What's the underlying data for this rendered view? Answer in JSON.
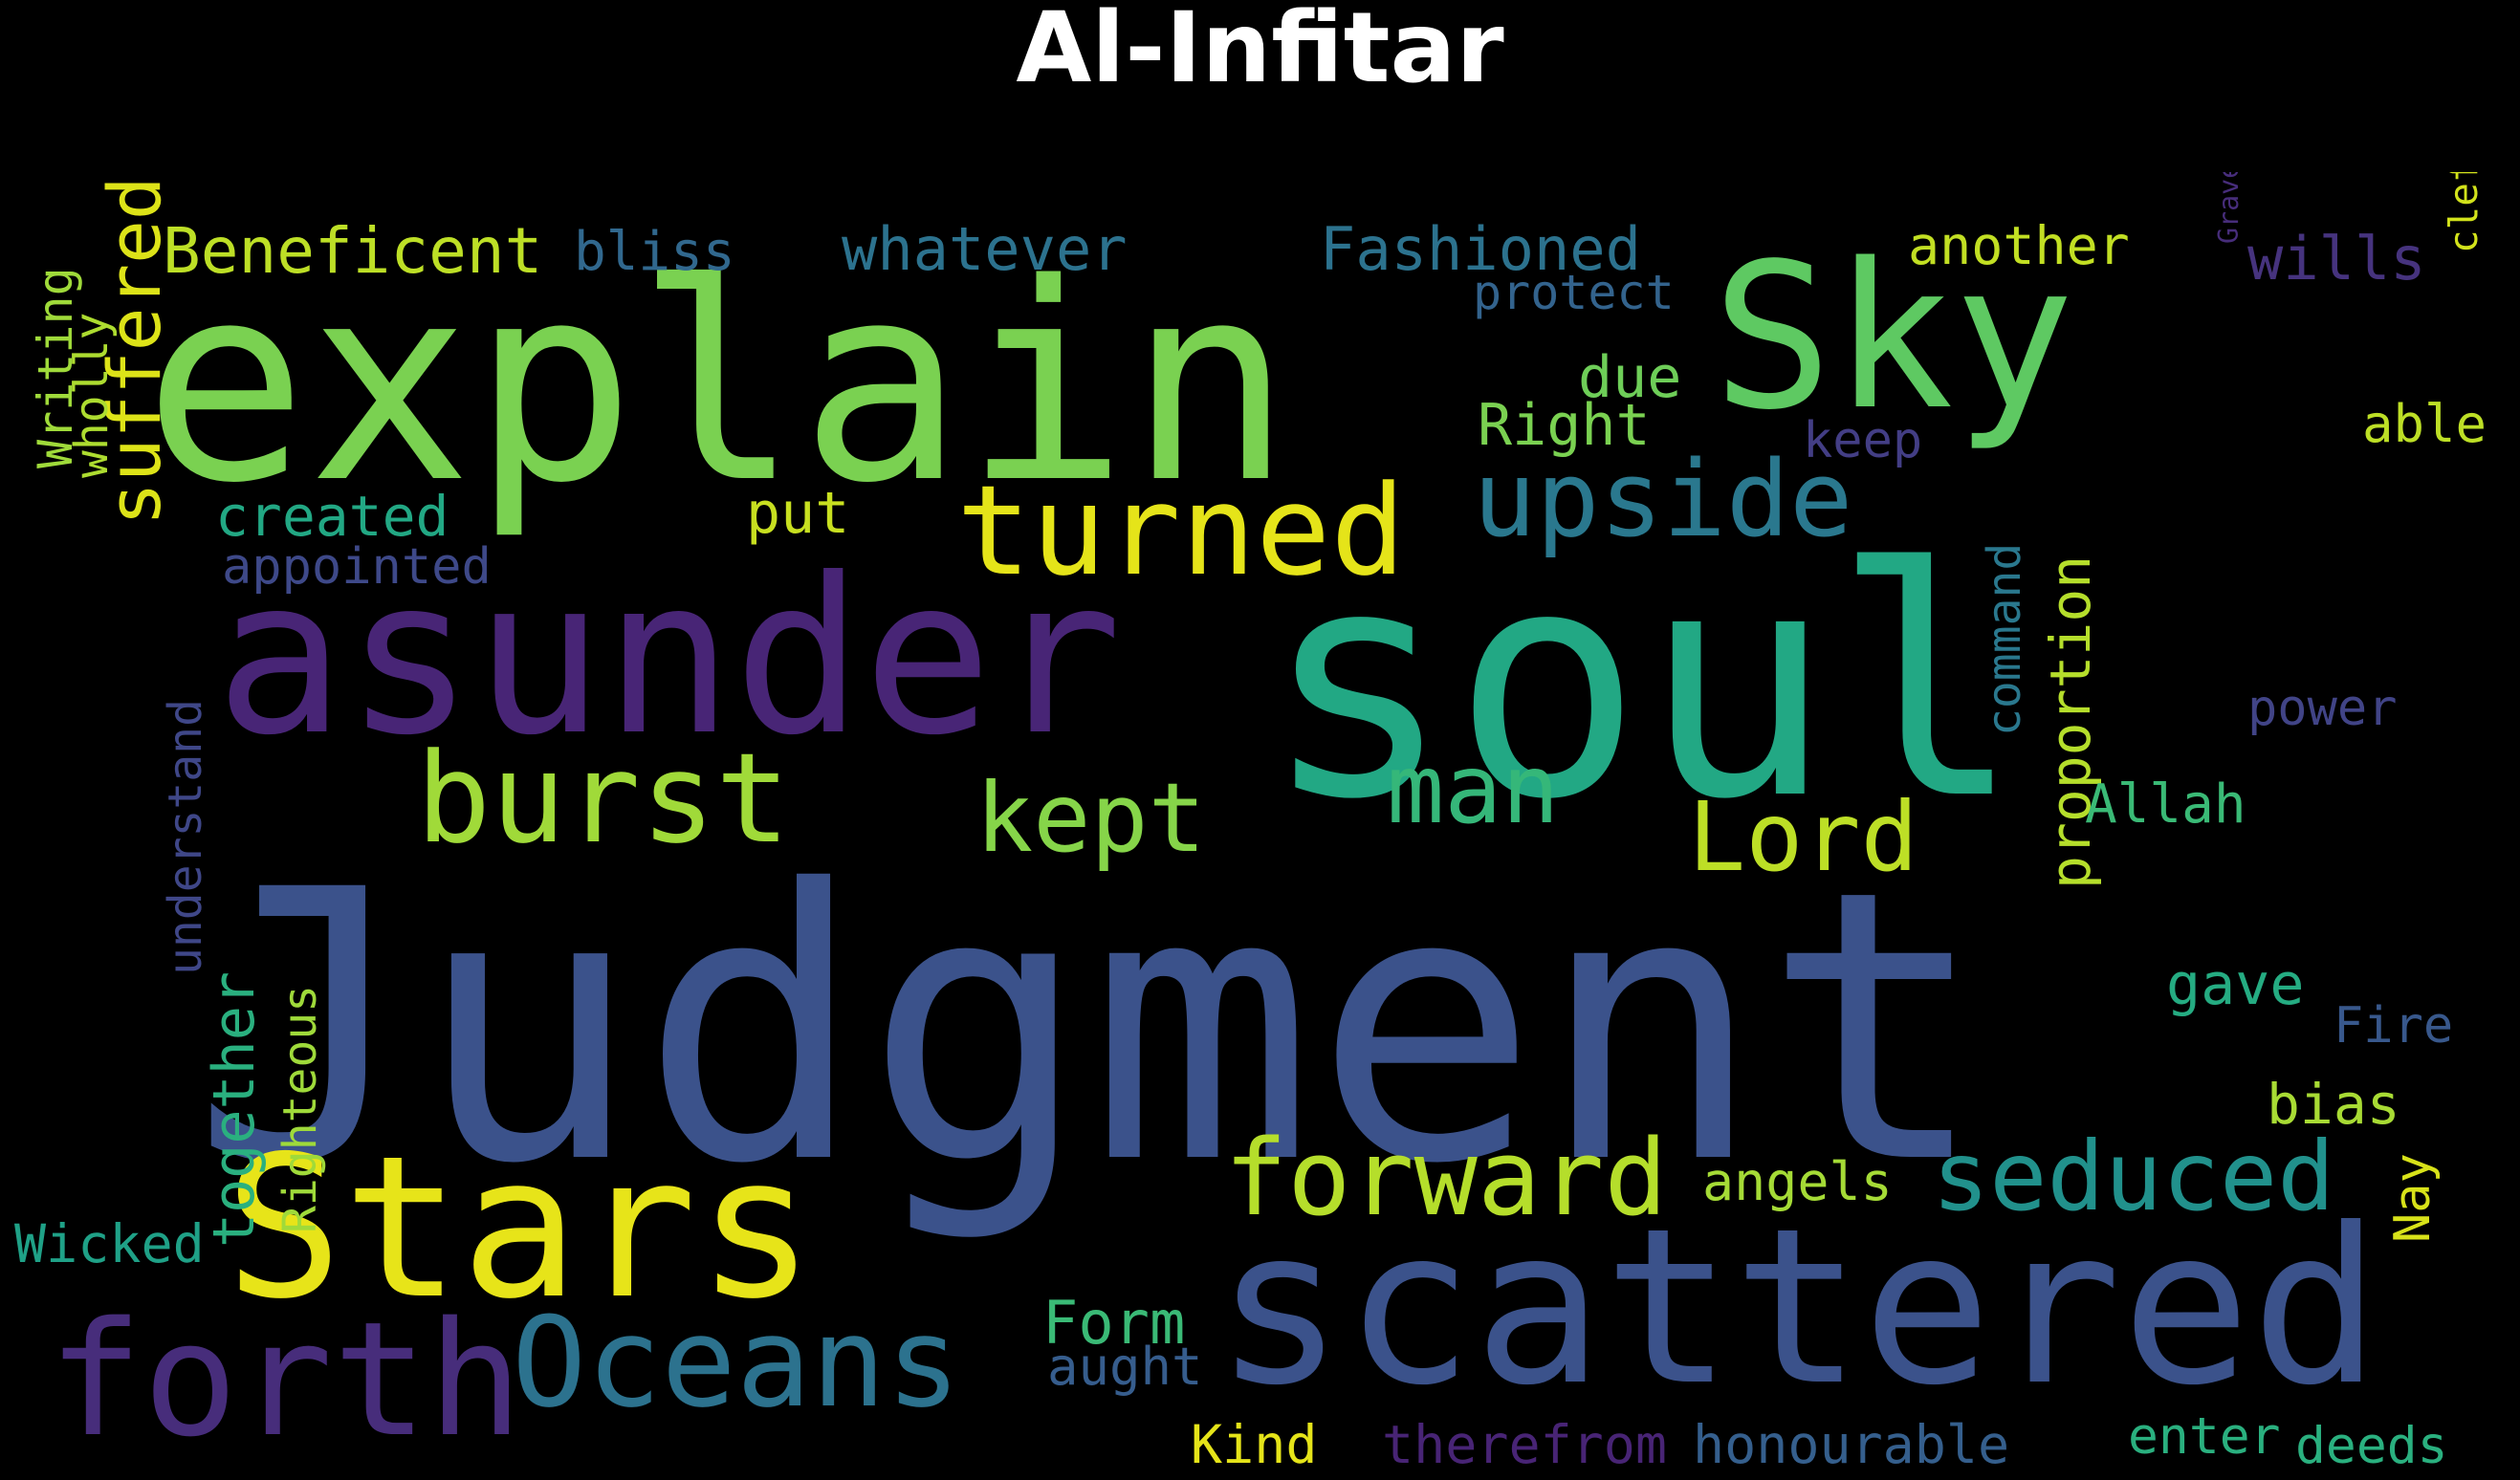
{
  "title": "Al-Infitar",
  "colors": {
    "background": "#000000",
    "title": "#ffffff"
  },
  "words": [
    {
      "text": "Judgment",
      "color": "#3b528b"
    },
    {
      "text": "explain",
      "color": "#7ad151"
    },
    {
      "text": "soul",
      "color": "#22a884"
    },
    {
      "text": "asunder",
      "color": "#482576"
    },
    {
      "text": "scattered",
      "color": "#3b528b"
    },
    {
      "text": "Sky",
      "color": "#5ec962"
    },
    {
      "text": "cleft",
      "color": "#d2e21b"
    },
    {
      "text": "Stars",
      "color": "#e7e419"
    },
    {
      "text": "suffered",
      "color": "#dde318"
    },
    {
      "text": "Graves",
      "color": "#472d7b"
    },
    {
      "text": "forth",
      "color": "#472d7b"
    },
    {
      "text": "Oceans",
      "color": "#2c728e"
    },
    {
      "text": "turned",
      "color": "#e5e419"
    },
    {
      "text": "burst",
      "color": "#a0da39"
    },
    {
      "text": "upside",
      "color": "#2a788e"
    },
    {
      "text": "forward",
      "color": "#b5de2b"
    },
    {
      "text": "seduced",
      "color": "#21918c"
    },
    {
      "text": "kept",
      "color": "#86d549"
    },
    {
      "text": "man",
      "color": "#35b779"
    },
    {
      "text": "Lord",
      "color": "#bddf26"
    },
    {
      "text": "Beneficent",
      "color": "#bddf26"
    },
    {
      "text": "bliss",
      "color": "#31688e"
    },
    {
      "text": "whatever",
      "color": "#2c728e"
    },
    {
      "text": "Fashioned",
      "color": "#2c728e"
    },
    {
      "text": "another",
      "color": "#c2df23"
    },
    {
      "text": "wills",
      "color": "#46337e"
    },
    {
      "text": "protect",
      "color": "#33638d"
    },
    {
      "text": "due",
      "color": "#6ece58"
    },
    {
      "text": "Right",
      "color": "#7ad151"
    },
    {
      "text": "keep",
      "color": "#433e85"
    },
    {
      "text": "able",
      "color": "#bddf26"
    },
    {
      "text": "Writing",
      "color": "#9fda3a"
    },
    {
      "text": "wholly",
      "color": "#addc30"
    },
    {
      "text": "created",
      "color": "#22a884"
    },
    {
      "text": "appointed",
      "color": "#3e4989"
    },
    {
      "text": "put",
      "color": "#c8e020"
    },
    {
      "text": "understand",
      "color": "#3f4788"
    },
    {
      "text": "together",
      "color": "#2ab07f"
    },
    {
      "text": "Righteous",
      "color": "#9fda3a"
    },
    {
      "text": "command",
      "color": "#2a788e"
    },
    {
      "text": "proportion",
      "color": "#b5de2b"
    },
    {
      "text": "power",
      "color": "#414487"
    },
    {
      "text": "Allah",
      "color": "#3aba76"
    },
    {
      "text": "gave",
      "color": "#25ac82"
    },
    {
      "text": "Fire",
      "color": "#38588c"
    },
    {
      "text": "bias",
      "color": "#a8db34"
    },
    {
      "text": "Nay",
      "color": "#d8e219"
    },
    {
      "text": "angels",
      "color": "#a5db36"
    },
    {
      "text": "Wicked",
      "color": "#1fa187"
    },
    {
      "text": "Form",
      "color": "#3aba76"
    },
    {
      "text": "aught",
      "color": "#365d8d"
    },
    {
      "text": "Kind",
      "color": "#e5e419"
    },
    {
      "text": "therefrom",
      "color": "#482475"
    },
    {
      "text": "honourable",
      "color": "#355f8d"
    },
    {
      "text": "enter",
      "color": "#2ab07f"
    },
    {
      "text": "deeds",
      "color": "#2ab07f"
    }
  ]
}
